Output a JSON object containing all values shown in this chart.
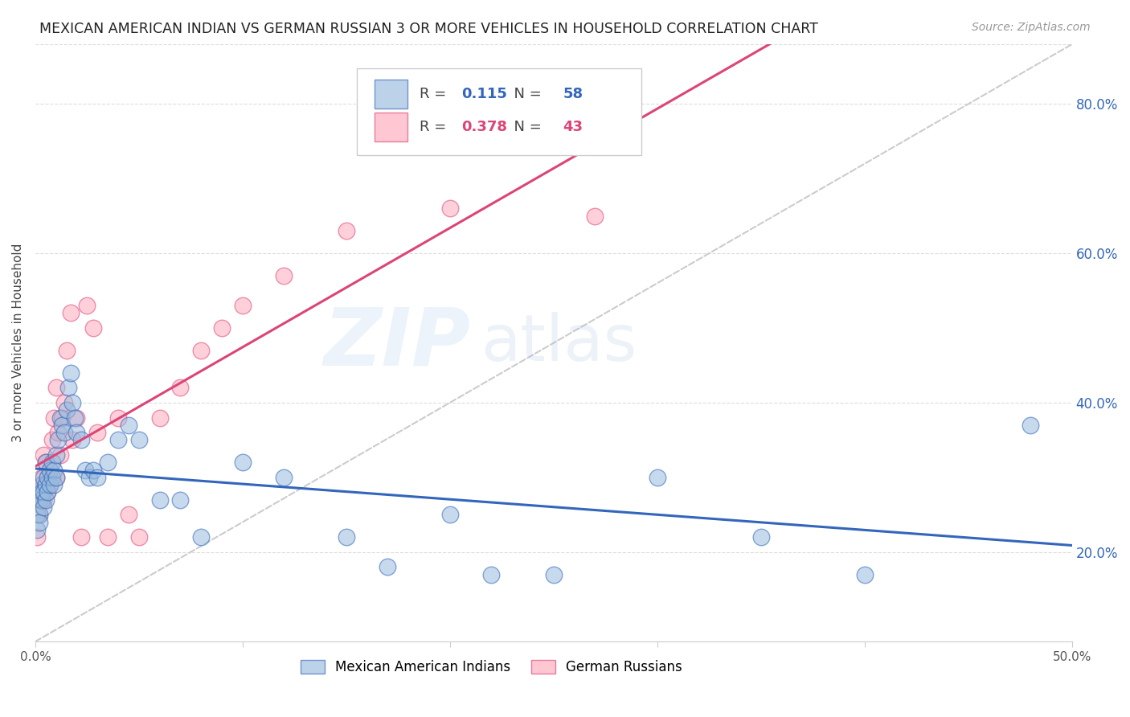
{
  "title": "MEXICAN AMERICAN INDIAN VS GERMAN RUSSIAN 3 OR MORE VEHICLES IN HOUSEHOLD CORRELATION CHART",
  "source": "Source: ZipAtlas.com",
  "ylabel": "3 or more Vehicles in Household",
  "xlim": [
    0.0,
    0.5
  ],
  "ylim": [
    0.08,
    0.88
  ],
  "xticks": [
    0.0,
    0.1,
    0.2,
    0.3,
    0.4,
    0.5
  ],
  "right_yticks": [
    0.2,
    0.4,
    0.6,
    0.8
  ],
  "right_yticklabels": [
    "20.0%",
    "40.0%",
    "60.0%",
    "80.0%"
  ],
  "blue_color": "#99BBDD",
  "pink_color": "#FFAABB",
  "blue_line_color": "#3366BB",
  "pink_line_color": "#DD4477",
  "gray_diag_color": "#CCCCCC",
  "watermark_zip": "ZIP",
  "watermark_atlas": "atlas",
  "legend_R_blue": "0.115",
  "legend_N_blue": "58",
  "legend_R_pink": "0.378",
  "legend_N_pink": "43",
  "legend_label_blue": "Mexican American Indians",
  "legend_label_pink": "German Russians",
  "blue_x": [
    0.001,
    0.001,
    0.001,
    0.002,
    0.002,
    0.002,
    0.003,
    0.003,
    0.003,
    0.004,
    0.004,
    0.004,
    0.005,
    0.005,
    0.005,
    0.006,
    0.006,
    0.007,
    0.007,
    0.008,
    0.008,
    0.009,
    0.009,
    0.01,
    0.01,
    0.011,
    0.012,
    0.013,
    0.014,
    0.015,
    0.016,
    0.017,
    0.018,
    0.019,
    0.02,
    0.022,
    0.024,
    0.026,
    0.028,
    0.03,
    0.035,
    0.04,
    0.045,
    0.05,
    0.06,
    0.07,
    0.08,
    0.1,
    0.12,
    0.15,
    0.17,
    0.2,
    0.22,
    0.25,
    0.3,
    0.35,
    0.4,
    0.48
  ],
  "blue_y": [
    0.28,
    0.25,
    0.23,
    0.27,
    0.25,
    0.24,
    0.29,
    0.27,
    0.28,
    0.3,
    0.28,
    0.26,
    0.29,
    0.32,
    0.27,
    0.28,
    0.3,
    0.31,
    0.29,
    0.32,
    0.3,
    0.31,
    0.29,
    0.33,
    0.3,
    0.35,
    0.38,
    0.37,
    0.36,
    0.39,
    0.42,
    0.44,
    0.4,
    0.38,
    0.36,
    0.35,
    0.31,
    0.3,
    0.31,
    0.3,
    0.32,
    0.35,
    0.37,
    0.35,
    0.27,
    0.27,
    0.22,
    0.32,
    0.3,
    0.22,
    0.18,
    0.25,
    0.17,
    0.17,
    0.3,
    0.22,
    0.17,
    0.37
  ],
  "pink_x": [
    0.001,
    0.001,
    0.002,
    0.002,
    0.003,
    0.003,
    0.004,
    0.004,
    0.005,
    0.005,
    0.006,
    0.006,
    0.007,
    0.007,
    0.008,
    0.009,
    0.01,
    0.01,
    0.011,
    0.012,
    0.013,
    0.014,
    0.015,
    0.017,
    0.018,
    0.02,
    0.022,
    0.025,
    0.028,
    0.03,
    0.035,
    0.04,
    0.045,
    0.05,
    0.06,
    0.07,
    0.08,
    0.09,
    0.1,
    0.12,
    0.15,
    0.2,
    0.27
  ],
  "pink_y": [
    0.27,
    0.22,
    0.29,
    0.25,
    0.28,
    0.3,
    0.27,
    0.33,
    0.29,
    0.32,
    0.3,
    0.28,
    0.31,
    0.29,
    0.35,
    0.38,
    0.3,
    0.42,
    0.36,
    0.33,
    0.38,
    0.4,
    0.47,
    0.52,
    0.35,
    0.38,
    0.22,
    0.53,
    0.5,
    0.36,
    0.22,
    0.38,
    0.25,
    0.22,
    0.38,
    0.42,
    0.47,
    0.5,
    0.53,
    0.57,
    0.63,
    0.66,
    0.65
  ],
  "title_fontsize": 12.5,
  "axis_label_fontsize": 11,
  "tick_fontsize": 11,
  "source_fontsize": 10
}
